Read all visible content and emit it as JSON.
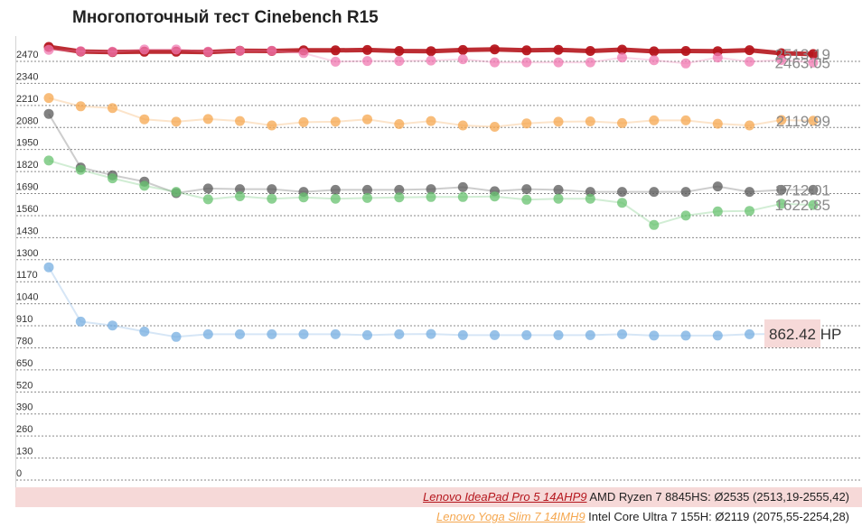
{
  "chart_data": {
    "type": "line",
    "title": "Многопоточный тест Cinebench R15",
    "xlabel": "",
    "ylabel": "",
    "ylim": [
      0,
      2550
    ],
    "yticks": [
      0,
      130,
      260,
      390,
      520,
      650,
      780,
      910,
      1040,
      1170,
      1300,
      1430,
      1560,
      1690,
      1820,
      1950,
      2080,
      2210,
      2340,
      2470
    ],
    "grid": true,
    "x": [
      1,
      2,
      3,
      4,
      5,
      6,
      7,
      8,
      9,
      10,
      11,
      12,
      13,
      14,
      15,
      16,
      17,
      18,
      19,
      20,
      21,
      22,
      23,
      24,
      25
    ],
    "series": [
      {
        "name": "Lenovo IdeaPad Pro 5 14AHP9 AMD Ryzen 7 8845HS: Ø2535 (2513,19-2555,42)",
        "color": "#b5161d",
        "values": [
          2555,
          2528,
          2525,
          2527,
          2527,
          2525,
          2533,
          2531,
          2535,
          2535,
          2537,
          2531,
          2530,
          2537,
          2541,
          2535,
          2538,
          2531,
          2539,
          2529,
          2531,
          2530,
          2536,
          2518,
          2513.19
        ],
        "end_label": "2513.19"
      },
      {
        "name": "",
        "color": "#f07ab2",
        "values": [
          2538,
          2530,
          2527,
          2540,
          2540,
          2527,
          2532,
          2533,
          2519,
          2468,
          2472,
          2472,
          2475,
          2483,
          2464,
          2464,
          2464,
          2464,
          2493,
          2477,
          2458,
          2493,
          2468,
          2478,
          2463.05
        ],
        "end_label": "2463.05"
      },
      {
        "name": "Lenovo Yoga Slim 7 14IMH9 Intel Core Ultra 7 155H: Ø2119 (2075,55-2254,28)",
        "color": "#f5a74f",
        "values": [
          2254,
          2205,
          2195,
          2128,
          2114,
          2130,
          2118,
          2092,
          2111,
          2114,
          2128,
          2100,
          2118,
          2092,
          2084,
          2104,
          2114,
          2116,
          2106,
          2122,
          2122,
          2102,
          2092,
          2124,
          2119.99
        ],
        "end_label": "2119.99"
      },
      {
        "name": "",
        "color": "#585858",
        "values": [
          2160,
          1844,
          1798,
          1761,
          1693,
          1720,
          1716,
          1716,
          1700,
          1712,
          1712,
          1712,
          1716,
          1728,
          1704,
          1716,
          1712,
          1700,
          1700,
          1700,
          1700,
          1732,
          1700,
          1712,
          1712.01
        ],
        "end_label": "1712.01"
      },
      {
        "name": "",
        "color": "#67c26f",
        "values": [
          1885,
          1830,
          1780,
          1736,
          1700,
          1656,
          1674,
          1660,
          1668,
          1660,
          1664,
          1668,
          1670,
          1670,
          1673,
          1654,
          1660,
          1660,
          1636,
          1505,
          1560,
          1585,
          1588,
          1630,
          1622.85
        ],
        "end_label": "1622.85"
      },
      {
        "name": "",
        "color": "#76ade0",
        "values": [
          1255,
          935,
          912,
          876,
          845,
          860,
          860,
          860,
          860,
          860,
          855,
          860,
          862,
          855,
          855,
          855,
          855,
          855,
          860,
          852,
          852,
          852,
          860,
          862.42,
          862.42
        ],
        "end_label": "862.42 HP"
      }
    ]
  },
  "legend": {
    "rows": [
      {
        "link": "Lenovo IdeaPad Pro 5 14AHP9",
        "text": " AMD Ryzen 7 8845HS: Ø2535 (2513,19-2555,42)",
        "color": "#b5161d"
      },
      {
        "link": "Lenovo Yoga Slim 7 14IMH9",
        "text": " Intel Core Ultra 7 155H: Ø2119 (2075,55-2254,28)",
        "color": "#f5a74f"
      }
    ]
  }
}
